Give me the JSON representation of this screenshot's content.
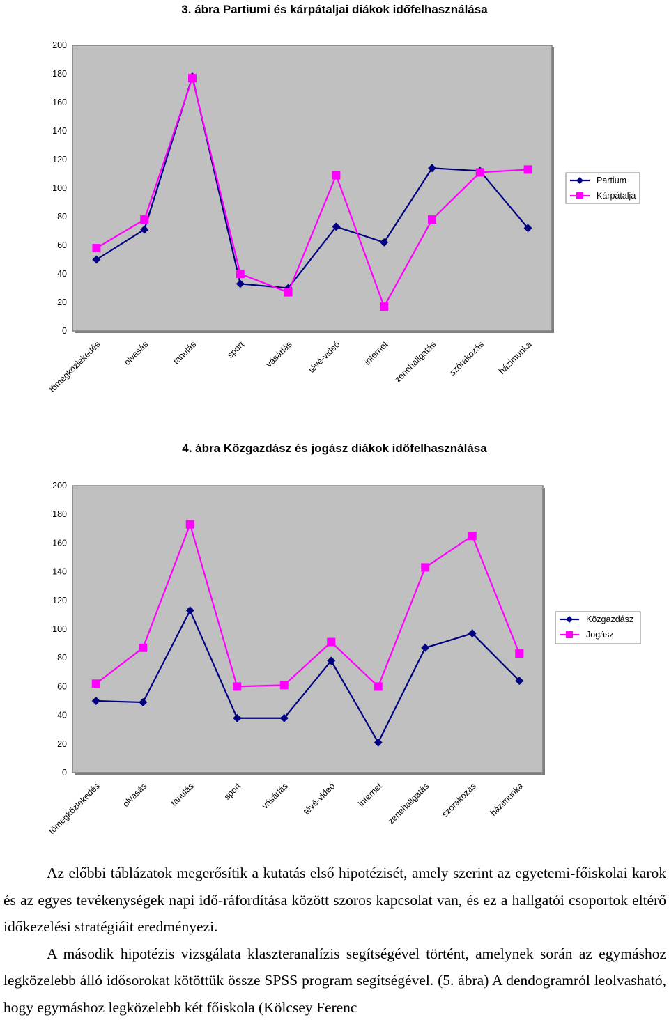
{
  "chart_data": [
    {
      "type": "line",
      "title": "3. ábra Partiumi és kárpátaljai diákok időfelhasználása",
      "categories": [
        "tömegközlekedés",
        "olvasás",
        "tanulás",
        "sport",
        "vásárlás",
        "tévé-videó",
        "internet",
        "zenehallgatás",
        "szórakozás",
        "házimunka"
      ],
      "ylim": [
        0,
        200
      ],
      "yticks": [
        "0",
        "20",
        "40",
        "60",
        "80",
        "100",
        "120",
        "140",
        "160",
        "180",
        "200"
      ],
      "grid": false,
      "legend_position": "right",
      "series": [
        {
          "name": "Partium",
          "color": "#000080",
          "marker": "diamond",
          "values": [
            50,
            71,
            178,
            33,
            30,
            73,
            62,
            114,
            112,
            72
          ]
        },
        {
          "name": "Kárpátalja",
          "color": "#FF00FF",
          "marker": "square",
          "values": [
            58,
            78,
            177,
            40,
            27,
            109,
            17,
            78,
            111,
            113
          ]
        }
      ]
    },
    {
      "type": "line",
      "title": "4. ábra Közgazdász és jogász diákok időfelhasználása",
      "categories": [
        "tömegközlekedés",
        "olvasás",
        "tanulás",
        "sport",
        "vásárlás",
        "tévé-videó",
        "internet",
        "zenehallgatás",
        "szórakozás",
        "házimunka"
      ],
      "ylim": [
        0,
        200
      ],
      "yticks": [
        "0",
        "20",
        "40",
        "60",
        "80",
        "100",
        "120",
        "140",
        "160",
        "180",
        "200"
      ],
      "grid": false,
      "legend_position": "right",
      "series": [
        {
          "name": "Közgazdász",
          "color": "#000080",
          "marker": "diamond",
          "values": [
            50,
            49,
            113,
            38,
            38,
            78,
            21,
            87,
            97,
            64
          ]
        },
        {
          "name": "Jogász",
          "color": "#FF00FF",
          "marker": "square",
          "values": [
            62,
            87,
            173,
            60,
            61,
            91,
            60,
            143,
            165,
            83
          ]
        }
      ]
    }
  ],
  "text": {
    "paragraph1": "Az előbbi táblázatok megerősítik a kutatás első hipotézisét, amely szerint az egyetemi-főiskolai karok és az egyes tevékenységek napi idő-ráfordítása között szoros kapcsolat van, és ez a hallgatói csoportok eltérő időkezelési stratégiáit eredményezi.",
    "paragraph2": "A második hipotézis vizsgálata klaszteranalízis segítségével történt, amelynek során az egymáshoz legközelebb álló idősorokat kötöttük össze SPSS program segítségével. (5. ábra) A dendogramról leolvasható, hogy egymáshoz legközelebb két főiskola (Kölcsey Ferenc"
  }
}
